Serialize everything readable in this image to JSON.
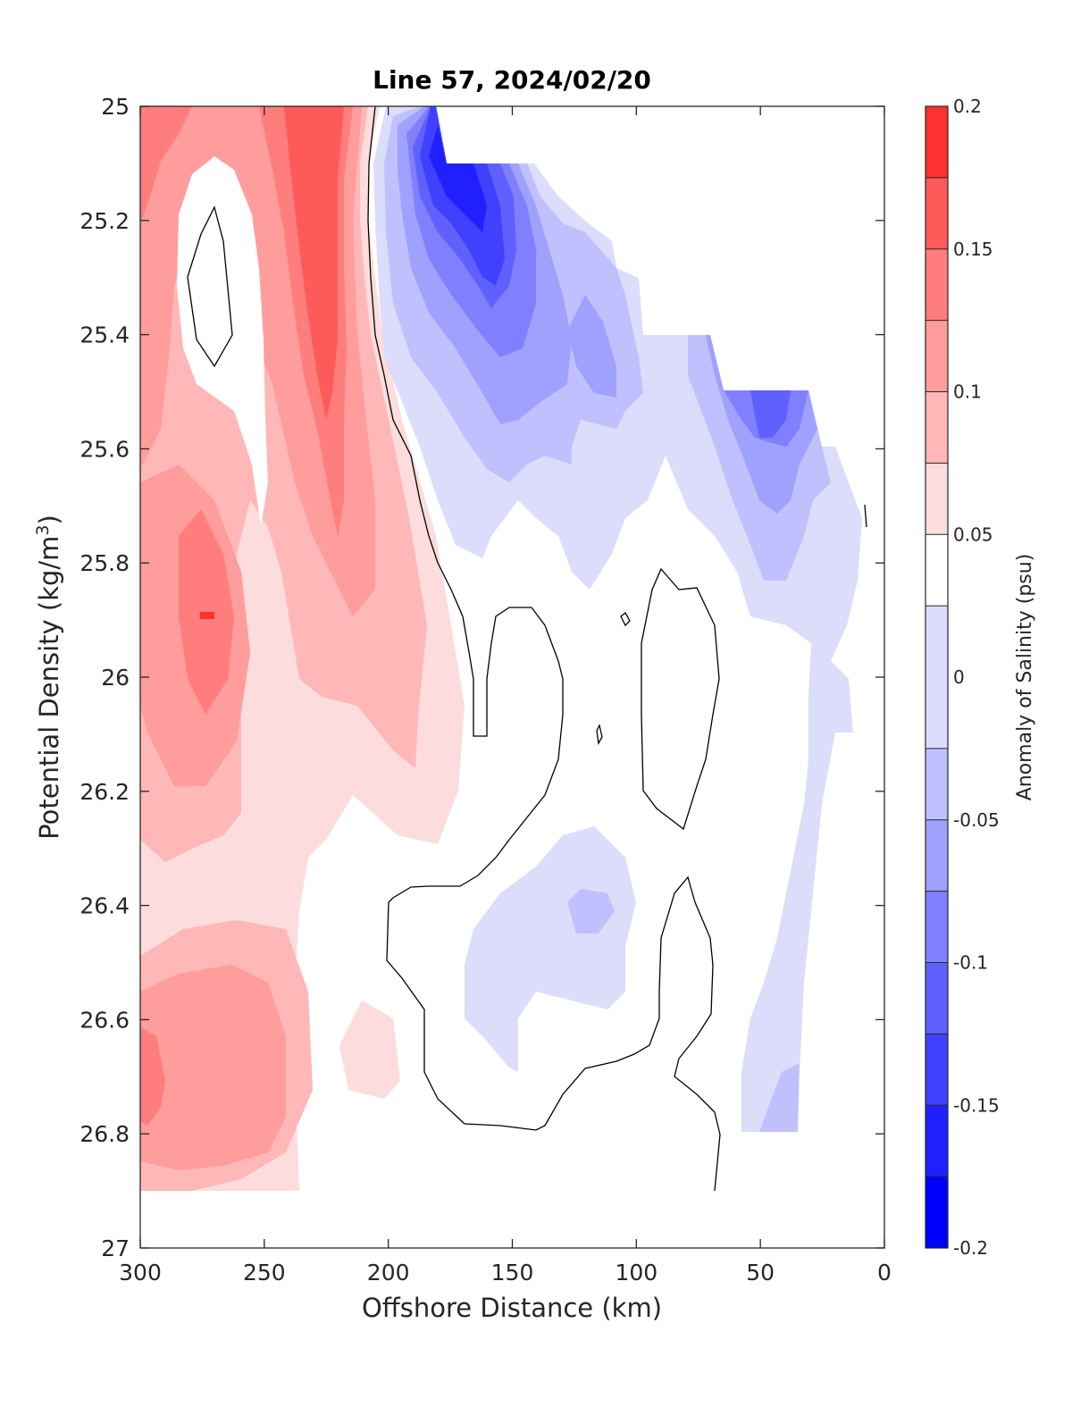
{
  "chart_data": {
    "type": "heatmap",
    "subtype": "filled-contour",
    "title": "Line 57, 2024/02/20",
    "xlabel": "Offshore Distance (km)",
    "ylabel_main": "Potential Density (kg/m",
    "ylabel_sup": "3",
    "ylabel_close": ")",
    "colorbar_label": "Anomaly of Salinity (psu)",
    "xlim": [
      300,
      0
    ],
    "x_reversed": true,
    "ylim": [
      25,
      27
    ],
    "y_reversed": true,
    "grid": false,
    "xticks": [
      300,
      250,
      200,
      150,
      100,
      50,
      0
    ],
    "xtick_labels": [
      "300",
      "250",
      "200",
      "150",
      "100",
      "50",
      "0"
    ],
    "yticks": [
      25,
      25.2,
      25.4,
      25.6,
      25.8,
      26,
      26.2,
      26.4,
      26.6,
      26.8,
      27
    ],
    "ytick_labels": [
      "25",
      "25.2",
      "25.4",
      "25.6",
      "25.8",
      "26",
      "26.2",
      "26.4",
      "26.6",
      "26.8",
      "27"
    ],
    "colorbar_range": [
      -0.2,
      0.2
    ],
    "colorbar_ticks": [
      0.2,
      0.15,
      0.1,
      0.05,
      0,
      -0.05,
      -0.1,
      -0.15,
      -0.2
    ],
    "colorbar_tick_labels": [
      "0.2",
      "0.15",
      "0.1",
      "0.05",
      "0",
      "-0.05",
      "-0.1",
      "-0.15",
      "-0.2"
    ],
    "contour_levels": [
      -0.2,
      -0.175,
      -0.15,
      -0.125,
      -0.1,
      -0.075,
      -0.05,
      -0.025,
      0.025,
      0.05,
      0.075,
      0.1,
      0.125,
      0.15,
      0.175,
      0.2
    ],
    "level_colors": [
      "#0000ff",
      "#2020ff",
      "#4040ff",
      "#6060ff",
      "#8080ff",
      "#a0a0ff",
      "#c0c0ff",
      "#dcdcfb",
      "#ffffff",
      "#fcdcdc",
      "#ffb7b7",
      "#ff9c9c",
      "#ff7d7d",
      "#ff5a5a",
      "#ff3030",
      "#ff0000"
    ],
    "zero_contour_color": "#000000",
    "data_extent": {
      "x_min": 6,
      "x_max": 300,
      "y_min": 25,
      "y_max": 26.9
    },
    "features": [
      {
        "name": "positive anomaly core (upper)",
        "x": 225,
        "y": 25.35,
        "value": 0.14
      },
      {
        "name": "positive anomaly core (mid)",
        "x": 270,
        "y": 25.9,
        "value": 0.16
      },
      {
        "name": "positive anomaly core (deep)",
        "x": 295,
        "y": 26.7,
        "value": 0.13
      },
      {
        "name": "near-zero pocket",
        "x": 270,
        "y": 25.3,
        "value": 0.0
      },
      {
        "name": "negative anomaly core (upper)",
        "x": 160,
        "y": 25.2,
        "value": -0.16
      },
      {
        "name": "negative anomaly lobe",
        "x": 120,
        "y": 25.45,
        "value": -0.09
      },
      {
        "name": "negative anomaly core (offshore)",
        "x": 45,
        "y": 25.55,
        "value": -0.11
      },
      {
        "name": "weak negative patch (deep)",
        "x": 120,
        "y": 26.4,
        "value": -0.08
      },
      {
        "name": "weak negative patch (deepest)",
        "x": 40,
        "y": 26.75,
        "value": -0.06
      }
    ]
  }
}
